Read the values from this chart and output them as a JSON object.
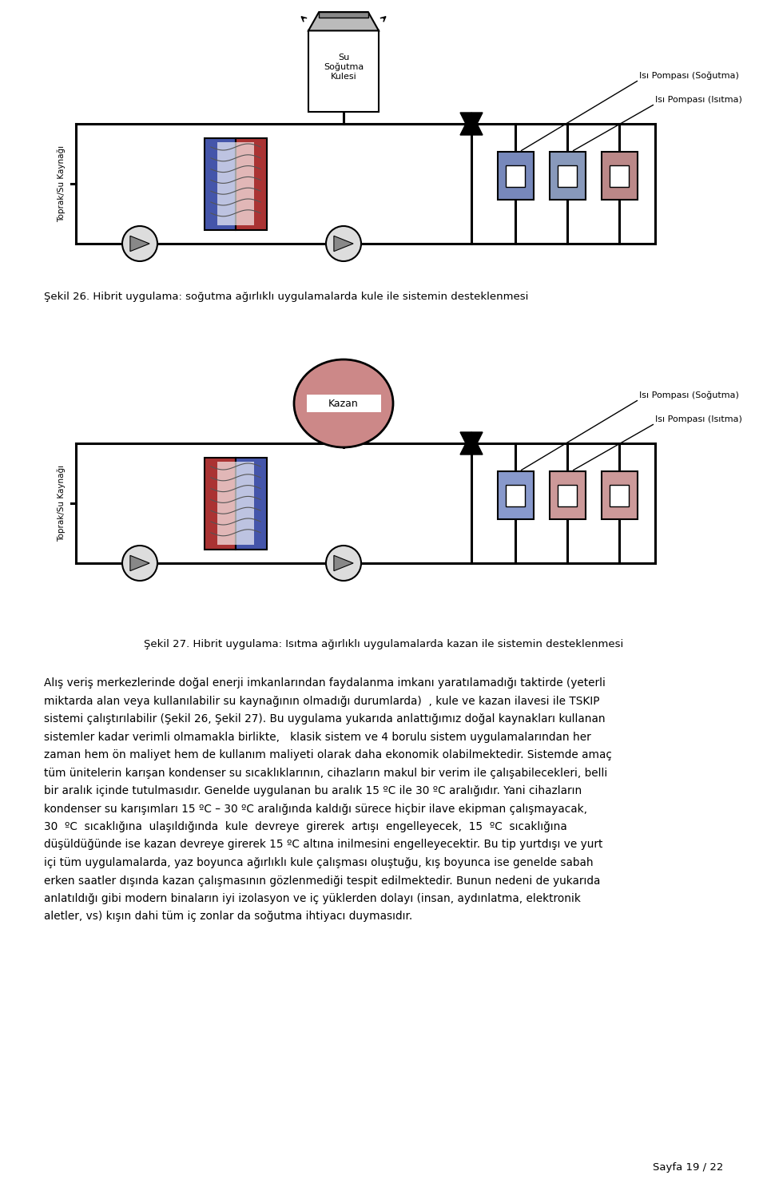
{
  "background_color": "#ffffff",
  "page_width": 9.6,
  "page_height": 14.96,
  "fig26_caption": "Şekil 26. Hibrit uygulama: soğutma ağırlıklı uygulamalarda kule ile sistemin desteklenmesi",
  "fig27_caption": "Şekil 27. Hibrit uygulama: Isıtma ağırlıklı uygulamalarda kazan ile sistemin desteklenmesi",
  "body_text_lines": [
    "Alış veriş merkezlerinde doğal enerji imkanlarından faydalanma imkanı yaratılamadığı taktirde (yeterli",
    "miktarda alan veya kullanılabilir su kaynağının olmadığı durumlarda)  , kule ve kazan ilavesi ile TSKIP",
    "sistemi çalıştırılabilir (Şekil 26, Şekil 27). Bu uygulama yukarıda anlattığımız doğal kaynakları kullanan",
    "sistemler kadar verimli olmamakla birlikte,   klasik sistem ve 4 borulu sistem uygulamalarından her",
    "zaman hem ön maliyet hem de kullanım maliyeti olarak daha ekonomik olabilmektedir. Sistemde amaç",
    "tüm ünitelerin karışan kondenser su sıcaklıklarının, cihazların makul bir verim ile çalışabilecekleri, belli",
    "bir aralık içinde tutulmasıdır. Genelde uygulanan bu aralık 15 ºC ile 30 ºC aralığıdır. Yani cihazların",
    "kondenser su karışımları 15 ºC – 30 ºC aralığında kaldığı sürece hiçbir ilave ekipman çalışmayacak,",
    "30  ºC  sıcaklığına  ulaşıldığında  kule  devreye  girerek  artışı  engelleyecek,  15  ºC  sıcaklığına",
    "düşüldüğünde ise kazan devreye girerek 15 ºC altına inilmesini engelleyecektir. Bu tip yurtdışı ve yurt",
    "içi tüm uygulamalarda, yaz boyunca ağırlıklı kule çalışması oluştuğu, kış boyunca ise genelde sabah",
    "erken saatler dışında kazan çalışmasının gözlenmediği tespit edilmektedir. Bunun nedeni de yukarıda",
    "anlatıldığı gibi modern binaların iyi izolasyon ve iç yüklerden dolayı (insan, aydınlatma, elektronik",
    "aletler, vs) kışın dahi tüm iç zonlar da soğutma ihtiyacı duymasıdır."
  ],
  "page_label": "Sayfa 19 / 22"
}
